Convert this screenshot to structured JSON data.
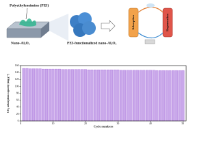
{
  "diagram": {
    "polymer_label": "Polyethyleneimine (PEI)",
    "support_label": "Nano-Al₂O₃",
    "product_label": "PEI-functionalized nano-Al₂O₃",
    "step1_label": "Adsorption",
    "step2_label": "Regeneration"
  },
  "chart_data": {
    "type": "bar",
    "xlabel": "Cycle numbers",
    "ylabel": "CO₂ adsorption capacity (mg g⁻¹)",
    "x": [
      1,
      2,
      3,
      4,
      5,
      6,
      7,
      8,
      9,
      10,
      11,
      12,
      13,
      14,
      15,
      16,
      17,
      18,
      19,
      20,
      21,
      22,
      23,
      24,
      25,
      26,
      27,
      28,
      29,
      30,
      31,
      32,
      33,
      34,
      35,
      36,
      37,
      38,
      39,
      40,
      41,
      42,
      43,
      44,
      45,
      46,
      47,
      48,
      49,
      50
    ],
    "values": [
      152,
      152,
      151,
      151,
      151,
      151,
      150,
      150,
      150,
      150,
      150,
      150,
      149,
      149,
      149,
      149,
      149,
      149,
      149,
      149,
      148,
      148,
      148,
      148,
      148,
      148,
      148,
      148,
      148,
      148,
      147,
      147,
      147,
      147,
      147,
      147,
      147,
      147,
      147,
      147,
      147,
      146,
      146,
      146,
      146,
      146,
      146,
      146,
      146,
      146
    ],
    "color": "#c9a8ea",
    "edge": "#9c5ad6",
    "xlim": [
      0,
      51
    ],
    "xticks": [
      0,
      10,
      20,
      30,
      40,
      50
    ],
    "ylim": [
      0,
      160
    ],
    "yticks": [
      0,
      20,
      40,
      60,
      80,
      100,
      120,
      140,
      160
    ]
  }
}
